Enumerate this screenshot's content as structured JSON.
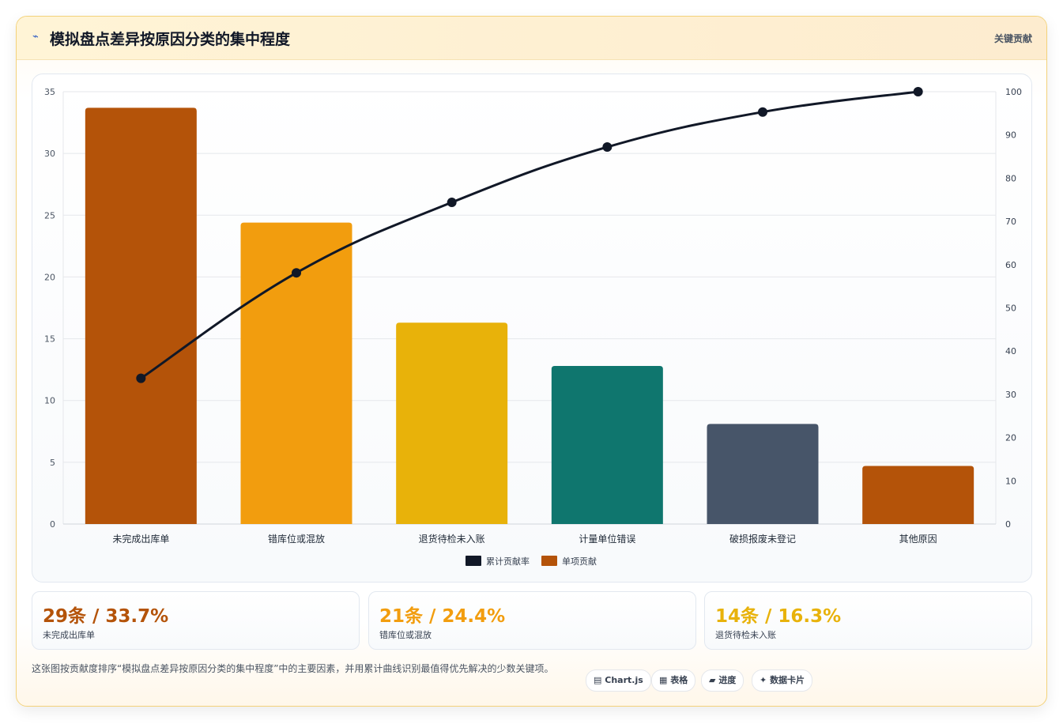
{
  "header": {
    "icon": "⌁",
    "title": "模拟盘点差异按原因分类的集中程度",
    "tag": "关键贡献"
  },
  "colors": {
    "accent_orange": "#b45309",
    "accent_amber": "#f29d0e",
    "accent_yellow": "#e8b20a",
    "teal": "#0f766e",
    "slate": "#475569",
    "line": "#111827"
  },
  "chart_data": {
    "type": "bar",
    "categories": [
      "未完成出库单",
      "错库位或混放",
      "退货待检未入账",
      "计量单位错误",
      "破损报废未登记",
      "其他原因"
    ],
    "series": [
      {
        "name": "单项贡献",
        "type": "bar",
        "axis": "left",
        "values": [
          33.7,
          24.4,
          16.3,
          12.8,
          8.1,
          4.7
        ],
        "colors": [
          "#b45309",
          "#f29d0e",
          "#e8b20a",
          "#0f766e",
          "#475569",
          "#b45309"
        ]
      },
      {
        "name": "累计贡献率",
        "type": "line",
        "axis": "right",
        "values": [
          33.7,
          58.1,
          74.4,
          87.2,
          95.3,
          100
        ]
      }
    ],
    "y_left": {
      "min": 0,
      "max": 35,
      "ticks": [
        0,
        5,
        10,
        15,
        20,
        25,
        30,
        35
      ]
    },
    "y_right": {
      "min": 0,
      "max": 100,
      "ticks": [
        0,
        10,
        20,
        30,
        40,
        50,
        60,
        70,
        80,
        90,
        100
      ]
    },
    "grid": true,
    "legend": {
      "position": "bottom",
      "items": [
        {
          "label": "累计贡献率",
          "color": "#111827"
        },
        {
          "label": "单项贡献",
          "color": "#b45309"
        }
      ]
    }
  },
  "stats": [
    {
      "value": "29条 / 33.7%",
      "label": "未完成出库单",
      "color": "#b45309"
    },
    {
      "value": "21条 / 24.4%",
      "label": "错库位或混放",
      "color": "#f29d0e"
    },
    {
      "value": "14条 / 16.3%",
      "label": "退货待检未入账",
      "color": "#e8b20a"
    }
  ],
  "footer": {
    "text": "这张图按贡献度排序“模拟盘点差异按原因分类的集中程度”中的主要因素，并用累计曲线识别最值得优先解决的少数关键项。",
    "buttons": [
      {
        "icon": "▤",
        "label": "Chart.js"
      },
      {
        "icon": "▦",
        "label": "表格"
      },
      {
        "icon": "▰",
        "label": "进度"
      },
      {
        "icon": "✦",
        "label": "数据卡片"
      }
    ]
  }
}
